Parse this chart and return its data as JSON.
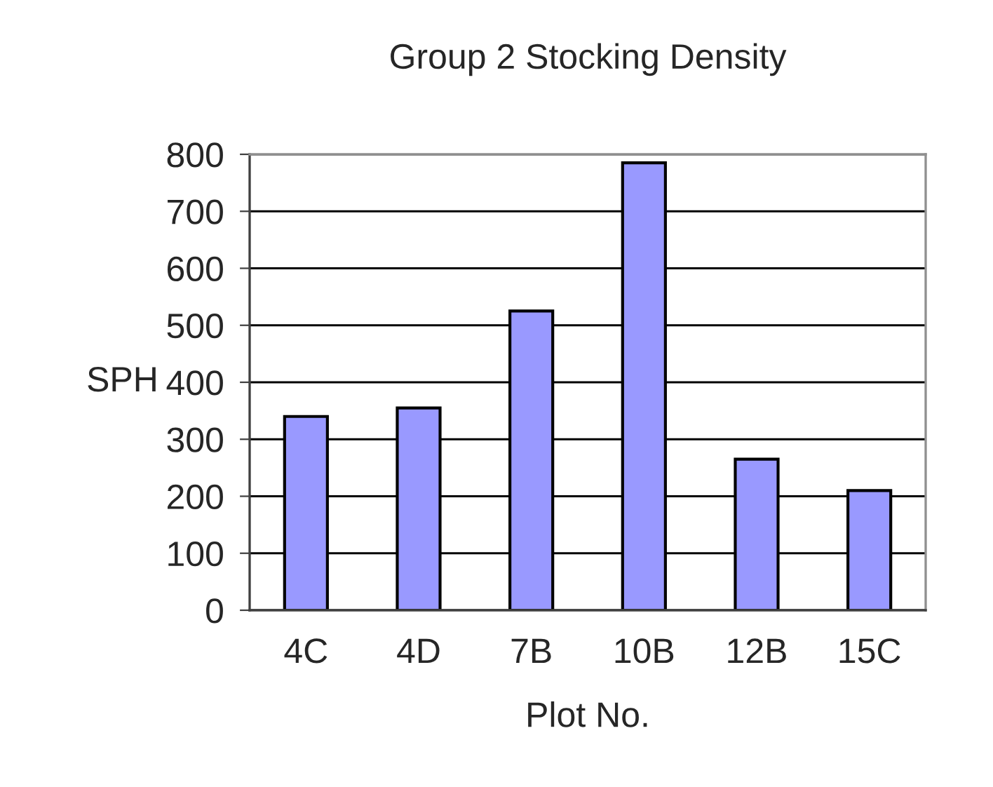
{
  "chart_data": {
    "type": "bar",
    "title": "Group 2 Stocking Density",
    "xlabel": "Plot No.",
    "ylabel": "SPH",
    "categories": [
      "4C",
      "4D",
      "7B",
      "10B",
      "12B",
      "15C"
    ],
    "values": [
      340,
      355,
      525,
      785,
      265,
      210
    ],
    "color": "#9999ff",
    "ylim": [
      0,
      800
    ],
    "yticks": [
      0,
      100,
      200,
      300,
      400,
      500,
      600,
      700,
      800
    ],
    "grid": "y"
  }
}
